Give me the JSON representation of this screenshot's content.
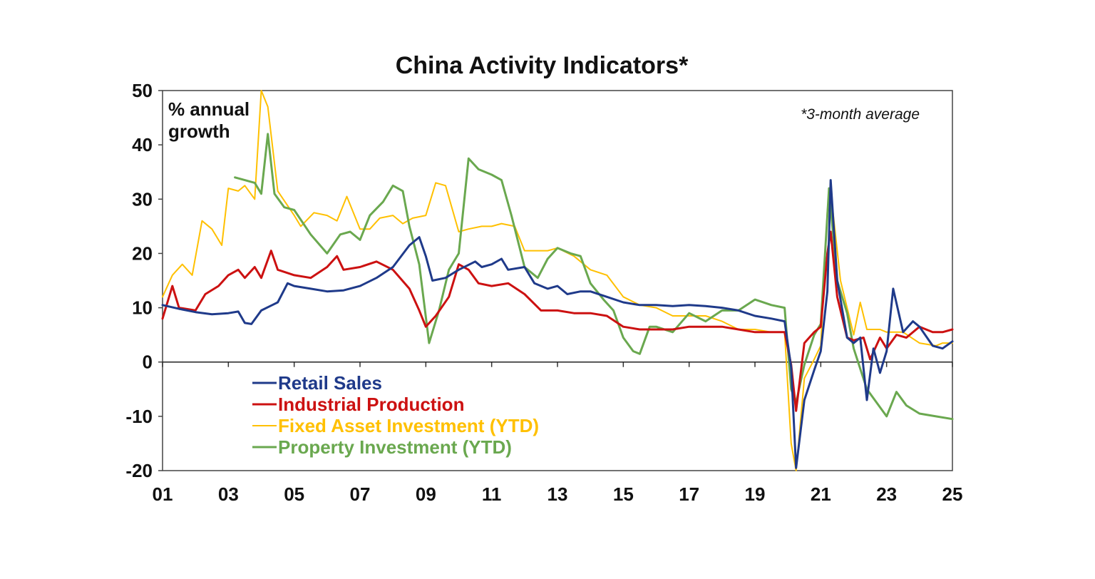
{
  "chart_data": {
    "type": "line",
    "title": "China Activity Indicators*",
    "ylabel_lines": [
      "% annual",
      "growth"
    ],
    "note": "*3-month average",
    "x_tick_labels": [
      "01",
      "03",
      "05",
      "07",
      "09",
      "11",
      "13",
      "15",
      "17",
      "19",
      "21",
      "23",
      "25"
    ],
    "x_ticks": [
      2001,
      2003,
      2005,
      2007,
      2009,
      2011,
      2013,
      2015,
      2017,
      2019,
      2021,
      2023,
      2025
    ],
    "xlim": [
      2001,
      2025
    ],
    "ylim": [
      -20,
      50
    ],
    "y_ticks": [
      -20,
      -10,
      0,
      10,
      20,
      30,
      40,
      50
    ],
    "legend_position": "lower-left",
    "grid": false,
    "series": [
      {
        "name": "Retail Sales",
        "color": "#1f3a8a",
        "points": [
          [
            2001,
            10.5
          ],
          [
            2001.5,
            9.8
          ],
          [
            2002,
            9.2
          ],
          [
            2002.5,
            8.8
          ],
          [
            2003,
            9.0
          ],
          [
            2003.3,
            9.3
          ],
          [
            2003.5,
            7.2
          ],
          [
            2003.7,
            7.0
          ],
          [
            2004,
            9.5
          ],
          [
            2004.5,
            11.0
          ],
          [
            2004.8,
            14.5
          ],
          [
            2005,
            14.0
          ],
          [
            2005.5,
            13.5
          ],
          [
            2006,
            13.0
          ],
          [
            2006.5,
            13.2
          ],
          [
            2007,
            14.0
          ],
          [
            2007.5,
            15.5
          ],
          [
            2008,
            17.5
          ],
          [
            2008.5,
            21.5
          ],
          [
            2008.8,
            23.0
          ],
          [
            2009,
            19.5
          ],
          [
            2009.2,
            15.0
          ],
          [
            2009.6,
            15.5
          ],
          [
            2010,
            17.0
          ],
          [
            2010.5,
            18.5
          ],
          [
            2010.7,
            17.5
          ],
          [
            2011,
            18.0
          ],
          [
            2011.3,
            19.0
          ],
          [
            2011.5,
            17.0
          ],
          [
            2012,
            17.5
          ],
          [
            2012.3,
            14.5
          ],
          [
            2012.7,
            13.5
          ],
          [
            2013,
            14.0
          ],
          [
            2013.3,
            12.5
          ],
          [
            2013.7,
            13.0
          ],
          [
            2014,
            13.0
          ],
          [
            2014.5,
            12.0
          ],
          [
            2015,
            11.0
          ],
          [
            2015.5,
            10.5
          ],
          [
            2016,
            10.5
          ],
          [
            2016.5,
            10.3
          ],
          [
            2017,
            10.5
          ],
          [
            2017.5,
            10.3
          ],
          [
            2018,
            10.0
          ],
          [
            2018.5,
            9.5
          ],
          [
            2019,
            8.5
          ],
          [
            2019.5,
            8.0
          ],
          [
            2019.9,
            7.5
          ],
          [
            2020.1,
            -1.0
          ],
          [
            2020.25,
            -19.5
          ],
          [
            2020.5,
            -7.0
          ],
          [
            2020.8,
            -1.5
          ],
          [
            2021,
            2.0
          ],
          [
            2021.2,
            13.0
          ],
          [
            2021.3,
            33.5
          ],
          [
            2021.5,
            15.0
          ],
          [
            2021.8,
            4.5
          ],
          [
            2022,
            3.5
          ],
          [
            2022.2,
            4.5
          ],
          [
            2022.4,
            -7.0
          ],
          [
            2022.6,
            2.5
          ],
          [
            2022.8,
            -2.0
          ],
          [
            2023,
            2.0
          ],
          [
            2023.2,
            13.5
          ],
          [
            2023.5,
            5.5
          ],
          [
            2023.8,
            7.5
          ],
          [
            2024,
            6.5
          ],
          [
            2024.4,
            3.0
          ],
          [
            2024.7,
            2.5
          ],
          [
            2025,
            3.8
          ]
        ]
      },
      {
        "name": "Industrial Production",
        "color": "#cc1111",
        "points": [
          [
            2001,
            8.0
          ],
          [
            2001.3,
            14.0
          ],
          [
            2001.5,
            10.0
          ],
          [
            2002,
            9.5
          ],
          [
            2002.3,
            12.5
          ],
          [
            2002.7,
            14.0
          ],
          [
            2003,
            16.0
          ],
          [
            2003.3,
            17.0
          ],
          [
            2003.5,
            15.5
          ],
          [
            2003.8,
            17.5
          ],
          [
            2004,
            15.5
          ],
          [
            2004.3,
            20.5
          ],
          [
            2004.5,
            17.0
          ],
          [
            2005,
            16.0
          ],
          [
            2005.5,
            15.5
          ],
          [
            2006,
            17.5
          ],
          [
            2006.3,
            19.5
          ],
          [
            2006.5,
            17.0
          ],
          [
            2007,
            17.5
          ],
          [
            2007.5,
            18.5
          ],
          [
            2008,
            17.0
          ],
          [
            2008.5,
            13.5
          ],
          [
            2008.8,
            9.5
          ],
          [
            2009,
            6.5
          ],
          [
            2009.3,
            8.5
          ],
          [
            2009.7,
            12.0
          ],
          [
            2010,
            18.0
          ],
          [
            2010.3,
            17.0
          ],
          [
            2010.6,
            14.5
          ],
          [
            2011,
            14.0
          ],
          [
            2011.5,
            14.5
          ],
          [
            2012,
            12.5
          ],
          [
            2012.5,
            9.5
          ],
          [
            2013,
            9.5
          ],
          [
            2013.5,
            9.0
          ],
          [
            2014,
            9.0
          ],
          [
            2014.5,
            8.5
          ],
          [
            2015,
            6.5
          ],
          [
            2015.5,
            6.0
          ],
          [
            2016,
            6.0
          ],
          [
            2016.5,
            6.0
          ],
          [
            2017,
            6.5
          ],
          [
            2017.5,
            6.5
          ],
          [
            2018,
            6.5
          ],
          [
            2018.5,
            6.0
          ],
          [
            2019,
            5.5
          ],
          [
            2019.5,
            5.5
          ],
          [
            2019.9,
            5.5
          ],
          [
            2020.1,
            -0.5
          ],
          [
            2020.25,
            -9.0
          ],
          [
            2020.5,
            3.5
          ],
          [
            2020.8,
            5.5
          ],
          [
            2021,
            6.5
          ],
          [
            2021.2,
            20.0
          ],
          [
            2021.3,
            24.0
          ],
          [
            2021.5,
            12.0
          ],
          [
            2021.8,
            4.5
          ],
          [
            2022,
            4.0
          ],
          [
            2022.3,
            4.5
          ],
          [
            2022.5,
            0.5
          ],
          [
            2022.8,
            4.5
          ],
          [
            2023,
            2.5
          ],
          [
            2023.3,
            5.0
          ],
          [
            2023.6,
            4.5
          ],
          [
            2024,
            6.5
          ],
          [
            2024.4,
            5.5
          ],
          [
            2024.7,
            5.5
          ],
          [
            2025,
            6.0
          ]
        ]
      },
      {
        "name": "Fixed Asset Investment (YTD)",
        "color": "#ffc000",
        "points": [
          [
            2001,
            12.0
          ],
          [
            2001.3,
            16.0
          ],
          [
            2001.6,
            18.0
          ],
          [
            2001.9,
            16.0
          ],
          [
            2002.2,
            26.0
          ],
          [
            2002.5,
            24.5
          ],
          [
            2002.8,
            21.5
          ],
          [
            2003,
            32.0
          ],
          [
            2003.3,
            31.5
          ],
          [
            2003.5,
            32.5
          ],
          [
            2003.8,
            30.0
          ],
          [
            2004,
            50.0
          ],
          [
            2004.2,
            47.0
          ],
          [
            2004.5,
            31.5
          ],
          [
            2005,
            27.0
          ],
          [
            2005.2,
            25.0
          ],
          [
            2005.6,
            27.5
          ],
          [
            2006,
            27.0
          ],
          [
            2006.3,
            26.0
          ],
          [
            2006.6,
            30.5
          ],
          [
            2007,
            24.5
          ],
          [
            2007.3,
            24.5
          ],
          [
            2007.6,
            26.5
          ],
          [
            2008,
            27.0
          ],
          [
            2008.3,
            25.5
          ],
          [
            2008.6,
            26.5
          ],
          [
            2009,
            27.0
          ],
          [
            2009.3,
            33.0
          ],
          [
            2009.6,
            32.5
          ],
          [
            2010,
            24.0
          ],
          [
            2010.3,
            24.5
          ],
          [
            2010.7,
            25.0
          ],
          [
            2011,
            25.0
          ],
          [
            2011.3,
            25.5
          ],
          [
            2011.7,
            25.0
          ],
          [
            2012,
            20.5
          ],
          [
            2012.3,
            20.5
          ],
          [
            2012.7,
            20.5
          ],
          [
            2013,
            21.0
          ],
          [
            2013.5,
            19.5
          ],
          [
            2014,
            17.0
          ],
          [
            2014.5,
            16.0
          ],
          [
            2015,
            12.0
          ],
          [
            2015.5,
            10.5
          ],
          [
            2016,
            10.0
          ],
          [
            2016.5,
            8.5
          ],
          [
            2017,
            8.5
          ],
          [
            2017.5,
            8.5
          ],
          [
            2018,
            7.5
          ],
          [
            2018.5,
            6.0
          ],
          [
            2019,
            6.0
          ],
          [
            2019.5,
            5.5
          ],
          [
            2019.9,
            5.5
          ],
          [
            2020.1,
            -15.0
          ],
          [
            2020.25,
            -20.0
          ],
          [
            2020.5,
            -3.0
          ],
          [
            2020.8,
            0.5
          ],
          [
            2021,
            3.0
          ],
          [
            2021.2,
            28.0
          ],
          [
            2021.3,
            31.5
          ],
          [
            2021.6,
            15.0
          ],
          [
            2022,
            5.0
          ],
          [
            2022.2,
            11.0
          ],
          [
            2022.4,
            6.0
          ],
          [
            2022.8,
            6.0
          ],
          [
            2023,
            5.5
          ],
          [
            2023.5,
            5.5
          ],
          [
            2024,
            3.5
          ],
          [
            2024.5,
            3.0
          ],
          [
            2024.7,
            3.5
          ],
          [
            2025,
            3.5
          ]
        ]
      },
      {
        "name": "Property Investment (YTD)",
        "color": "#6aa84f",
        "points": [
          [
            2003.2,
            34.0
          ],
          [
            2003.5,
            33.5
          ],
          [
            2003.8,
            33.0
          ],
          [
            2004,
            31.0
          ],
          [
            2004.2,
            42.0
          ],
          [
            2004.4,
            31.0
          ],
          [
            2004.7,
            28.5
          ],
          [
            2005,
            28.0
          ],
          [
            2005.5,
            23.5
          ],
          [
            2006,
            20.0
          ],
          [
            2006.4,
            23.5
          ],
          [
            2006.7,
            24.0
          ],
          [
            2007,
            22.5
          ],
          [
            2007.3,
            27.0
          ],
          [
            2007.7,
            29.5
          ],
          [
            2008,
            32.5
          ],
          [
            2008.3,
            31.5
          ],
          [
            2008.5,
            25.0
          ],
          [
            2008.8,
            18.0
          ],
          [
            2009.1,
            3.5
          ],
          [
            2009.4,
            9.5
          ],
          [
            2009.7,
            17.0
          ],
          [
            2010,
            20.0
          ],
          [
            2010.3,
            37.5
          ],
          [
            2010.6,
            35.5
          ],
          [
            2011,
            34.5
          ],
          [
            2011.3,
            33.5
          ],
          [
            2011.6,
            27.0
          ],
          [
            2012,
            17.5
          ],
          [
            2012.4,
            15.5
          ],
          [
            2012.7,
            19.0
          ],
          [
            2013,
            21.0
          ],
          [
            2013.4,
            20.0
          ],
          [
            2013.7,
            19.5
          ],
          [
            2014,
            14.5
          ],
          [
            2014.4,
            11.5
          ],
          [
            2014.7,
            9.5
          ],
          [
            2015,
            4.5
          ],
          [
            2015.3,
            2.0
          ],
          [
            2015.5,
            1.5
          ],
          [
            2015.8,
            6.5
          ],
          [
            2016,
            6.5
          ],
          [
            2016.5,
            5.5
          ],
          [
            2017,
            9.0
          ],
          [
            2017.5,
            7.5
          ],
          [
            2018,
            9.5
          ],
          [
            2018.5,
            9.5
          ],
          [
            2019,
            11.5
          ],
          [
            2019.5,
            10.5
          ],
          [
            2019.9,
            10.0
          ],
          [
            2020.1,
            -5.0
          ],
          [
            2020.25,
            -7.5
          ],
          [
            2020.5,
            -0.5
          ],
          [
            2020.8,
            5.0
          ],
          [
            2021,
            7.0
          ],
          [
            2021.25,
            32.0
          ],
          [
            2021.5,
            15.0
          ],
          [
            2021.8,
            9.0
          ],
          [
            2022,
            2.5
          ],
          [
            2022.4,
            -5.0
          ],
          [
            2022.7,
            -7.5
          ],
          [
            2023,
            -10.0
          ],
          [
            2023.3,
            -5.5
          ],
          [
            2023.6,
            -8.0
          ],
          [
            2024,
            -9.5
          ],
          [
            2024.5,
            -10.0
          ],
          [
            2025,
            -10.5
          ]
        ]
      }
    ]
  }
}
